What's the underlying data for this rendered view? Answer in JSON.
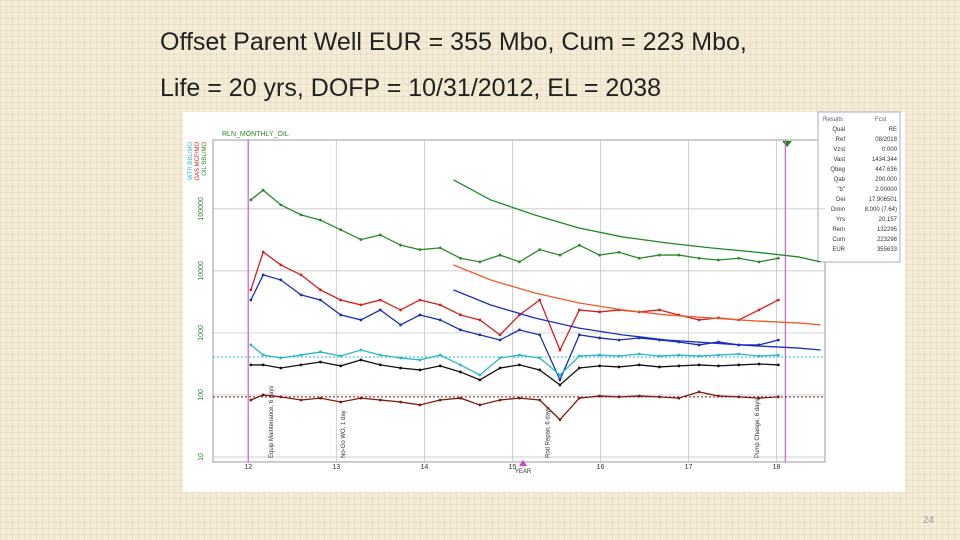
{
  "slide": {
    "title_lines": [
      "Offset Parent Well  EUR = 355 Mbo, Cum = 223 Mbo,",
      "Life = 20 yrs, DOFP = 10/31/2012, EL = 2038"
    ],
    "page_number": "24"
  },
  "chart_data": {
    "type": "line",
    "title": "RLN_MONTHLY_OIL",
    "x_label": "YEAR",
    "y_labels": [
      {
        "text": "WTR BBL/MO",
        "color": "#2ab8c8"
      },
      {
        "text": "GAS MCF/MO",
        "color": "#d02020"
      },
      {
        "text": "OIL BBL/MO",
        "color": "#2a8a2a"
      }
    ],
    "log_y": true,
    "grid": true,
    "xlim": [
      11.6,
      18.55
    ],
    "xticks": [
      12,
      13,
      14,
      15,
      16,
      17,
      18
    ],
    "ylim": [
      8.3,
      1290000
    ],
    "yticks": [
      10,
      100,
      1000,
      10000,
      100000
    ],
    "series": [
      {
        "color": "#2a8a2a",
        "x": [
          12.03,
          12.17,
          12.37,
          12.6,
          12.82,
          13.05,
          13.28,
          13.5,
          13.73,
          13.95,
          14.18,
          14.41,
          14.63,
          14.86,
          15.08,
          15.31,
          15.54,
          15.76,
          15.99,
          16.21,
          16.44,
          16.67,
          16.89,
          17.12,
          17.34,
          17.57,
          17.8,
          18.02
        ],
        "values": [
          140000,
          200000,
          116000,
          80000,
          66000,
          46000,
          32000,
          38000,
          26000,
          22000,
          23500,
          16000,
          14000,
          18000,
          14000,
          22000,
          18000,
          26000,
          18000,
          20000,
          16000,
          18000,
          18000,
          16000,
          15000,
          16000,
          14000,
          16000
        ]
      },
      {
        "color": "#d02020",
        "x": [
          12.03,
          12.17,
          12.37,
          12.6,
          12.82,
          13.05,
          13.28,
          13.5,
          13.73,
          13.95,
          14.18,
          14.41,
          14.63,
          14.86,
          15.08,
          15.31,
          15.54,
          15.76,
          15.99,
          16.21,
          16.44,
          16.67,
          16.89,
          17.12,
          17.34,
          17.57,
          17.8,
          18.02
        ],
        "values": [
          4940,
          20200,
          12500,
          8620,
          4940,
          3400,
          2830,
          3400,
          2350,
          3400,
          2830,
          1950,
          1620,
          930,
          1950,
          3400,
          530,
          2350,
          2180,
          2350,
          2180,
          2350,
          1950,
          1620,
          1750,
          1620,
          2350,
          3400
        ]
      },
      {
        "color": "#1a2fb0",
        "x": [
          12.03,
          12.17,
          12.37,
          12.6,
          12.82,
          13.05,
          13.28,
          13.5,
          13.73,
          13.95,
          14.18,
          14.41,
          14.63,
          14.86,
          15.08,
          15.31,
          15.54,
          15.76,
          15.99,
          16.21,
          16.44,
          16.67,
          16.89,
          17.12,
          17.34,
          17.57,
          17.8,
          18.02
        ],
        "values": [
          3400,
          8620,
          7160,
          4100,
          3400,
          1950,
          1620,
          2350,
          1350,
          1950,
          1620,
          1120,
          930,
          770,
          1120,
          930,
          175,
          930,
          830,
          770,
          830,
          770,
          715,
          640,
          715,
          640,
          640,
          770
        ]
      },
      {
        "color": "#2ab8c8",
        "x": [
          12.03,
          12.17,
          12.37,
          12.6,
          12.82,
          13.05,
          13.28,
          13.5,
          13.73,
          13.95,
          14.18,
          14.41,
          14.63,
          14.86,
          15.08,
          15.31,
          15.54,
          15.76,
          15.99,
          16.21,
          16.44,
          16.67,
          16.89,
          17.12,
          17.34,
          17.57,
          17.8,
          18.02
        ],
        "values": [
          640,
          440,
          395,
          440,
          494,
          425,
          530,
          440,
          395,
          367,
          440,
          305,
          210,
          395,
          440,
          395,
          210,
          425,
          440,
          425,
          458,
          425,
          440,
          425,
          440,
          458,
          425,
          440
        ]
      },
      {
        "color": "#111111",
        "x": [
          12.03,
          12.17,
          12.37,
          12.6,
          12.82,
          13.05,
          13.28,
          13.5,
          13.73,
          13.95,
          14.18,
          14.41,
          14.63,
          14.86,
          15.08,
          15.31,
          15.54,
          15.76,
          15.99,
          16.21,
          16.44,
          16.67,
          16.89,
          17.12,
          17.34,
          17.57,
          17.8,
          18.02
        ],
        "values": [
          305,
          305,
          272,
          305,
          340,
          294,
          367,
          305,
          272,
          253,
          294,
          235,
          175,
          272,
          305,
          253,
          145,
          272,
          294,
          283,
          305,
          283,
          294,
          305,
          294,
          305,
          316,
          305
        ]
      },
      {
        "color": "#7a1a10",
        "x": [
          12.03,
          12.17,
          12.37,
          12.6,
          12.82,
          13.05,
          13.28,
          13.5,
          13.73,
          13.95,
          14.18,
          14.41,
          14.63,
          14.86,
          15.08,
          15.31,
          15.54,
          15.76,
          15.99,
          16.21,
          16.44,
          16.67,
          16.89,
          17.12,
          17.34,
          17.57,
          17.8,
          18.02
        ],
        "values": [
          83,
          100,
          93,
          83,
          89,
          77,
          89,
          83,
          77,
          69,
          83,
          89,
          69,
          83,
          89,
          83,
          40,
          89,
          96,
          93,
          96,
          93,
          89,
          112,
          96,
          93,
          89,
          93
        ]
      },
      {
        "color": "#1e8a1e",
        "x": [
          14.33,
          14.75,
          15.25,
          15.75,
          16.25,
          16.75,
          17.25,
          17.75,
          18.25,
          18.5
        ],
        "values": [
          294000,
          140000,
          80000,
          49400,
          35300,
          28300,
          23500,
          20200,
          16800,
          14000
        ]
      },
      {
        "color": "#f05a28",
        "x": [
          14.33,
          14.75,
          15.25,
          15.75,
          16.25,
          16.75,
          17.25,
          17.75,
          18.25,
          18.5
        ],
        "values": [
          12500,
          7160,
          4420,
          3050,
          2350,
          1950,
          1750,
          1560,
          1450,
          1350
        ]
      },
      {
        "color": "#1a2fc8",
        "x": [
          14.33,
          14.75,
          15.25,
          15.75,
          16.25,
          16.75,
          17.25,
          17.75,
          18.25,
          18.5
        ],
        "values": [
          4940,
          2830,
          1750,
          1200,
          930,
          770,
          690,
          620,
          570,
          530
        ]
      }
    ],
    "reference_lines": [
      {
        "color": "#2ab8c8",
        "value": 410
      },
      {
        "color": "#7a1a10",
        "value": 93
      }
    ],
    "vertical_lines": {
      "color": "#d060d0",
      "x": [
        12.0,
        18.1
      ]
    },
    "annotations": [
      {
        "text": "Equip Maintenance, 6 days",
        "x": 12.28
      },
      {
        "text": "No-Go WO, 1 day",
        "x": 13.1
      },
      {
        "text": "Rod Repair, 6 days",
        "x": 15.42
      },
      {
        "text": "Pump Change, 6 days",
        "x": 17.8
      }
    ]
  },
  "results_panel": {
    "header": [
      "Results",
      "Fcst"
    ],
    "rows": [
      [
        "Qual",
        "RE"
      ],
      [
        "Ref",
        "08/2018"
      ],
      [
        "Vzst",
        "0.000"
      ],
      [
        "Vast",
        "1434.344"
      ],
      [
        "Qbeg",
        "447.636"
      ],
      [
        "Qab",
        "200.000"
      ],
      [
        "\"b\"",
        "2.00000"
      ],
      [
        "Dei",
        "17.906501"
      ],
      [
        "Dmin",
        "8.000 (7.64)"
      ],
      [
        "Yrs",
        "20.157"
      ],
      [
        "Rem",
        "132295"
      ],
      [
        "Cum",
        "223298"
      ],
      [
        "EUR",
        "355633"
      ]
    ]
  }
}
